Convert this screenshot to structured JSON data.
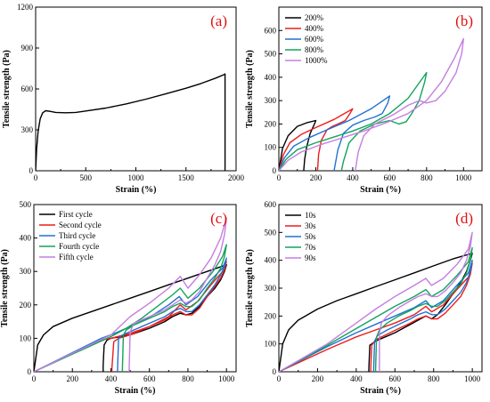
{
  "chart_data": [
    {
      "type": "line",
      "panel_label": "(a)",
      "xlabel": "Strain (%)",
      "ylabel": "Tensile strength (Pa)",
      "xlim": [
        0,
        2000
      ],
      "ylim": [
        0,
        1200
      ],
      "xticks": [
        "0",
        "500",
        "1000",
        "1500",
        "2000"
      ],
      "yticks": [
        "0",
        "300",
        "600",
        "900",
        "1200"
      ],
      "legend": null,
      "series": [
        {
          "color": "#000000",
          "x": [
            0,
            10,
            25,
            45,
            70,
            100,
            150,
            200,
            300,
            400,
            500,
            700,
            900,
            1100,
            1300,
            1500,
            1650,
            1800,
            1880,
            1890,
            1890
          ],
          "y": [
            0,
            160,
            290,
            380,
            425,
            440,
            435,
            428,
            425,
            428,
            438,
            460,
            490,
            525,
            565,
            605,
            640,
            680,
            705,
            710,
            0
          ]
        }
      ]
    },
    {
      "type": "line",
      "panel_label": "(b)",
      "xlabel": "Strain (%)",
      "ylabel": "Tensile strength (Pa)",
      "xlim": [
        0,
        1100
      ],
      "ylim": [
        0,
        700
      ],
      "xticks": [
        "0",
        "200",
        "400",
        "600",
        "800",
        "1000"
      ],
      "yticks": [
        "0",
        "100",
        "200",
        "300",
        "400",
        "500",
        "600"
      ],
      "legend": "top-left",
      "series": [
        {
          "name": "200%",
          "color": "#000000",
          "x": [
            0,
            20,
            50,
            100,
            150,
            200,
            190,
            170,
            150,
            140,
            135,
            135
          ],
          "y": [
            0,
            95,
            150,
            190,
            205,
            215,
            195,
            160,
            100,
            50,
            5,
            0
          ]
        },
        {
          "name": "400%",
          "color": "#ee1c1c",
          "x": [
            0,
            25,
            60,
            120,
            200,
            300,
            400,
            385,
            360,
            320,
            290,
            260,
            230,
            215,
            210,
            210
          ],
          "y": [
            0,
            70,
            120,
            155,
            185,
            220,
            265,
            245,
            215,
            200,
            190,
            175,
            130,
            70,
            5,
            0
          ]
        },
        {
          "name": "600%",
          "color": "#1f72d4",
          "x": [
            0,
            30,
            80,
            160,
            260,
            380,
            500,
            600,
            590,
            560,
            520,
            460,
            400,
            350,
            320,
            300,
            300
          ],
          "y": [
            0,
            55,
            105,
            140,
            175,
            215,
            265,
            320,
            290,
            245,
            230,
            215,
            195,
            160,
            90,
            5,
            0
          ]
        },
        {
          "name": "800%",
          "color": "#14a35a",
          "x": [
            0,
            40,
            100,
            200,
            300,
            400,
            500,
            600,
            700,
            800,
            790,
            760,
            720,
            690,
            650,
            600,
            520,
            440,
            380,
            350,
            340,
            340
          ],
          "y": [
            0,
            50,
            90,
            120,
            145,
            170,
            200,
            245,
            310,
            420,
            380,
            300,
            245,
            210,
            200,
            215,
            200,
            170,
            120,
            40,
            5,
            0
          ]
        },
        {
          "name": "1000%",
          "color": "#c57ee0",
          "x": [
            0,
            50,
            120,
            220,
            340,
            460,
            580,
            700,
            800,
            880,
            950,
            1000,
            990,
            960,
            900,
            850,
            800,
            760,
            700,
            620,
            520,
            460,
            430,
            415,
            415
          ],
          "y": [
            0,
            45,
            80,
            110,
            140,
            170,
            205,
            245,
            300,
            380,
            480,
            565,
            500,
            420,
            340,
            300,
            290,
            300,
            280,
            240,
            200,
            150,
            80,
            5,
            0
          ]
        }
      ]
    },
    {
      "type": "line",
      "panel_label": "(c)",
      "xlabel": "Strain (%)",
      "ylabel": "Tensile strength (Pa)",
      "xlim": [
        0,
        1050
      ],
      "ylim": [
        0,
        500
      ],
      "xticks": [
        "0",
        "200",
        "400",
        "600",
        "800",
        "1000"
      ],
      "yticks": [
        "0",
        "100",
        "200",
        "300",
        "400",
        "500"
      ],
      "legend": "top-left",
      "series": [
        {
          "name": "First cycle",
          "color": "#000000",
          "x": [
            0,
            20,
            50,
            100,
            200,
            300,
            400,
            500,
            600,
            700,
            800,
            900,
            1000,
            990,
            970,
            940,
            900,
            860,
            820,
            790,
            760,
            720,
            680,
            640,
            600,
            550,
            500,
            450,
            400,
            380,
            365,
            360,
            360
          ],
          "y": [
            0,
            80,
            110,
            135,
            160,
            180,
            200,
            220,
            240,
            260,
            280,
            300,
            320,
            300,
            275,
            250,
            225,
            195,
            175,
            170,
            175,
            165,
            150,
            140,
            130,
            120,
            110,
            105,
            100,
            95,
            80,
            20,
            0
          ]
        },
        {
          "name": "Second cycle",
          "color": "#ee1c1c",
          "x": [
            0,
            350,
            400,
            500,
            600,
            700,
            760,
            790,
            850,
            920,
            980,
            1000,
            990,
            970,
            940,
            900,
            860,
            820,
            790,
            760,
            720,
            680,
            620,
            560,
            500,
            440,
            415,
            405,
            405
          ],
          "y": [
            0,
            95,
            100,
            115,
            135,
            165,
            200,
            185,
            210,
            260,
            300,
            330,
            305,
            280,
            255,
            225,
            190,
            170,
            170,
            180,
            170,
            155,
            140,
            125,
            110,
            100,
            90,
            10,
            0
          ]
        },
        {
          "name": "Third cycle",
          "color": "#1f72d4",
          "x": [
            0,
            350,
            420,
            520,
            620,
            700,
            755,
            790,
            850,
            920,
            980,
            1000,
            990,
            970,
            940,
            900,
            860,
            820,
            790,
            760,
            720,
            680,
            620,
            560,
            500,
            460,
            440,
            435,
            435
          ],
          "y": [
            0,
            100,
            115,
            140,
            170,
            200,
            225,
            200,
            225,
            275,
            310,
            340,
            315,
            290,
            260,
            230,
            200,
            180,
            180,
            190,
            180,
            165,
            150,
            135,
            120,
            110,
            100,
            10,
            0
          ]
        },
        {
          "name": "Fourth cycle",
          "color": "#14a35a",
          "x": [
            0,
            400,
            480,
            560,
            640,
            720,
            760,
            800,
            860,
            930,
            980,
            1000,
            990,
            970,
            940,
            900,
            860,
            820,
            790,
            760,
            720,
            680,
            620,
            560,
            520,
            480,
            465,
            460,
            460
          ],
          "y": [
            0,
            105,
            130,
            160,
            195,
            230,
            250,
            220,
            250,
            300,
            345,
            380,
            345,
            310,
            280,
            250,
            215,
            195,
            195,
            205,
            195,
            180,
            165,
            150,
            140,
            125,
            110,
            10,
            0
          ]
        },
        {
          "name": "Fifth cycle",
          "color": "#c57ee0",
          "x": [
            0,
            400,
            500,
            600,
            700,
            760,
            800,
            860,
            920,
            970,
            1000,
            990,
            970,
            940,
            900,
            860,
            820,
            790,
            760,
            720,
            680,
            620,
            560,
            520,
            500,
            495,
            495
          ],
          "y": [
            0,
            110,
            165,
            205,
            250,
            285,
            250,
            290,
            340,
            400,
            460,
            410,
            360,
            320,
            280,
            240,
            215,
            205,
            215,
            200,
            185,
            170,
            155,
            145,
            120,
            10,
            0
          ]
        }
      ]
    },
    {
      "type": "line",
      "panel_label": "(d)",
      "xlabel": "Strain (%)",
      "ylabel": "Tensile strength (Pa)",
      "xlim": [
        0,
        1050
      ],
      "ylim": [
        0,
        600
      ],
      "xticks": [
        "0",
        "200",
        "400",
        "600",
        "800",
        "1000"
      ],
      "yticks": [
        "0",
        "100",
        "200",
        "300",
        "400",
        "500",
        "600"
      ],
      "legend": "top-left",
      "series": [
        {
          "name": "10s",
          "color": "#000000",
          "x": [
            0,
            20,
            50,
            100,
            200,
            300,
            400,
            500,
            600,
            700,
            800,
            900,
            1000,
            990,
            970,
            940,
            900,
            860,
            820,
            790,
            760,
            720,
            680,
            640,
            600,
            550,
            500,
            480,
            470,
            465,
            465
          ],
          "y": [
            0,
            100,
            150,
            185,
            225,
            255,
            280,
            305,
            330,
            355,
            380,
            405,
            425,
            400,
            360,
            320,
            280,
            240,
            205,
            190,
            200,
            185,
            170,
            155,
            140,
            125,
            110,
            100,
            95,
            10,
            0
          ]
        },
        {
          "name": "30s",
          "color": "#ee1c1c",
          "x": [
            0,
            250,
            400,
            500,
            600,
            700,
            760,
            790,
            850,
            920,
            980,
            1000,
            990,
            970,
            940,
            900,
            860,
            820,
            790,
            760,
            720,
            680,
            620,
            560,
            500,
            480,
            475,
            475
          ],
          "y": [
            0,
            80,
            125,
            150,
            175,
            205,
            235,
            215,
            240,
            295,
            340,
            390,
            350,
            310,
            270,
            240,
            210,
            190,
            190,
            200,
            190,
            175,
            155,
            135,
            115,
            95,
            10,
            0
          ]
        },
        {
          "name": "50s",
          "color": "#1f72d4",
          "x": [
            0,
            250,
            400,
            500,
            600,
            700,
            760,
            790,
            850,
            920,
            980,
            1000,
            990,
            970,
            940,
            900,
            860,
            820,
            790,
            760,
            720,
            680,
            620,
            560,
            510,
            495,
            490,
            490
          ],
          "y": [
            0,
            90,
            140,
            170,
            200,
            230,
            255,
            230,
            255,
            310,
            355,
            400,
            360,
            320,
            285,
            255,
            225,
            205,
            205,
            215,
            205,
            190,
            170,
            150,
            130,
            110,
            10,
            0
          ]
        },
        {
          "name": "70s",
          "color": "#14a35a",
          "x": [
            0,
            250,
            400,
            500,
            600,
            700,
            760,
            790,
            850,
            920,
            980,
            1000,
            990,
            970,
            940,
            900,
            860,
            820,
            790,
            760,
            720,
            680,
            620,
            560,
            520,
            505,
            500,
            500
          ],
          "y": [
            0,
            95,
            155,
            195,
            235,
            270,
            295,
            270,
            295,
            345,
            395,
            445,
            400,
            355,
            315,
            285,
            255,
            235,
            235,
            245,
            235,
            220,
            200,
            175,
            150,
            125,
            10,
            0
          ]
        },
        {
          "name": "90s",
          "color": "#c57ee0",
          "x": [
            0,
            250,
            400,
            500,
            600,
            700,
            760,
            790,
            850,
            920,
            980,
            1000,
            990,
            970,
            940,
            900,
            860,
            820,
            790,
            760,
            720,
            680,
            620,
            560,
            530,
            520,
            520,
            520
          ],
          "y": [
            0,
            100,
            175,
            225,
            270,
            310,
            335,
            310,
            335,
            385,
            440,
            500,
            450,
            400,
            355,
            320,
            290,
            270,
            270,
            280,
            270,
            255,
            230,
            200,
            175,
            140,
            10,
            0
          ]
        }
      ]
    }
  ]
}
